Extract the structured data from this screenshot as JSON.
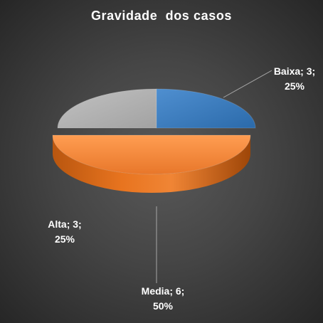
{
  "chart_data": {
    "type": "pie",
    "title": "Gravidade  dos casos",
    "categories": [
      "Baixa",
      "Media",
      "Alta"
    ],
    "values": [
      3,
      6,
      3
    ],
    "percentages": [
      "25%",
      "50%",
      "25%"
    ],
    "colors": [
      "#2E75B6",
      "#ED7D31",
      "#A5A5A5"
    ],
    "data_labels": [
      {
        "line1": "Baixa; 3;",
        "line2": "25%"
      },
      {
        "line1": "Media; 6;",
        "line2": "50%"
      },
      {
        "line1": "Alta; 3;",
        "line2": "25%"
      }
    ],
    "style": "3d-exploded-pie",
    "legend": "none"
  }
}
